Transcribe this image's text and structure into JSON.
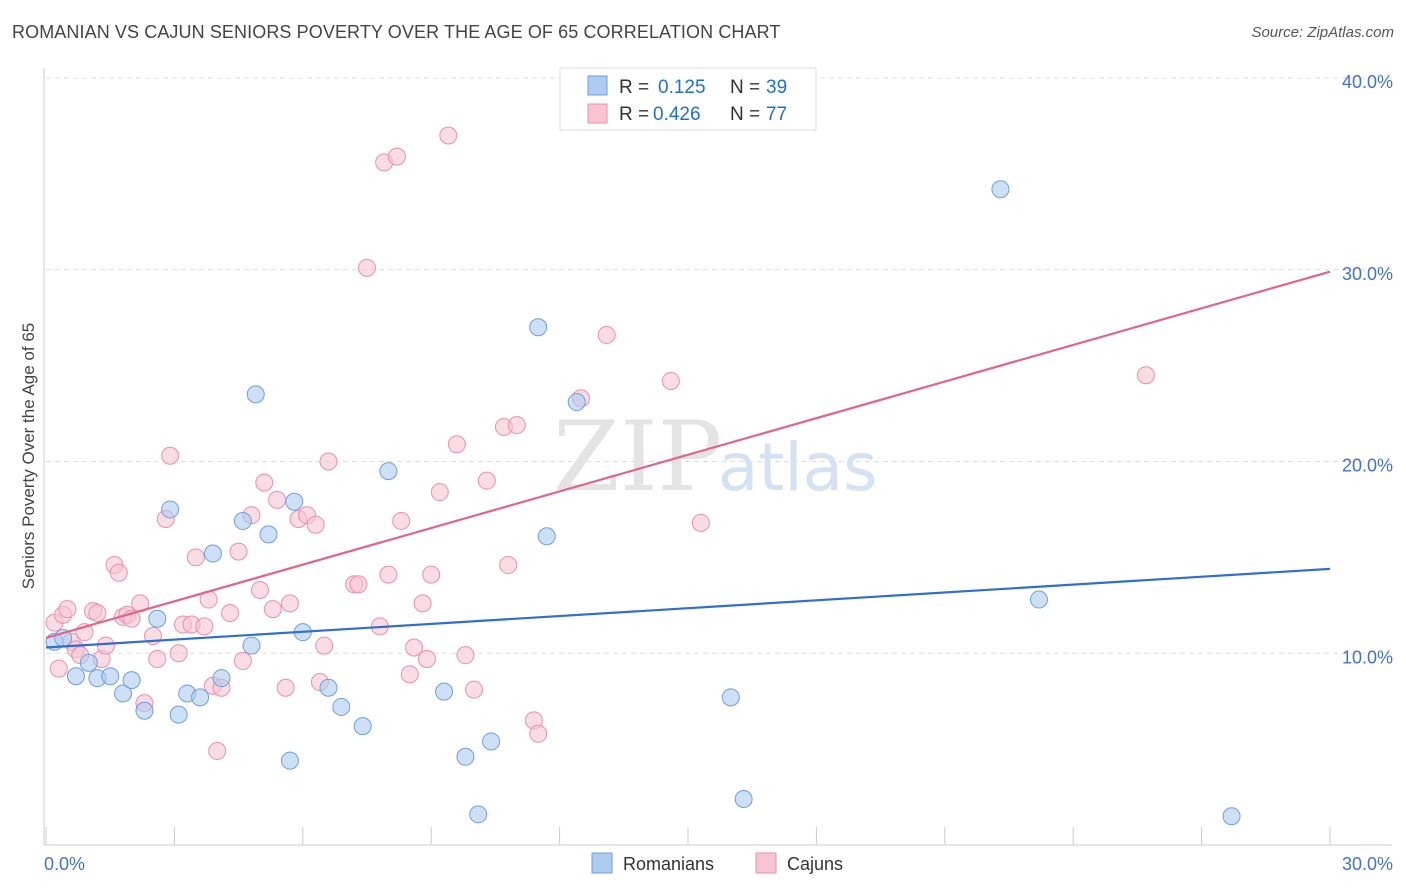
{
  "title": "ROMANIAN VS CAJUN SENIORS POVERTY OVER THE AGE OF 65 CORRELATION CHART",
  "source": "Source: ZipAtlas.com",
  "watermark": {
    "part1": "ZIP",
    "part2": "atlas"
  },
  "colors": {
    "romanians_fill": "#aecbf0",
    "romanians_stroke": "#6f9fdc",
    "romanians_line": "#2f6fcf",
    "cajuns_fill": "#f7c4d3",
    "cajuns_stroke": "#e890ad",
    "cajuns_line": "#e0648e",
    "tick_label": "#4472c4",
    "grid": "#dddddd"
  },
  "legend": {
    "r_label": "R =",
    "n_label": "N =",
    "romanians": {
      "r": "0.125",
      "n": "39"
    },
    "cajuns": {
      "r": "0.426",
      "n": "77"
    }
  },
  "chart_data": {
    "type": "scatter",
    "title": "ROMANIAN VS CAJUN SENIORS POVERTY OVER THE AGE OF 65 CORRELATION CHART",
    "xlabel": "",
    "ylabel": "Seniors Poverty Over the Age of 65",
    "xlim": [
      0,
      30
    ],
    "ylim": [
      0,
      40
    ],
    "x_tick_labels": [
      "0.0%",
      "30.0%"
    ],
    "y_ticks": [
      10,
      20,
      30,
      40
    ],
    "y_tick_labels": [
      "10.0%",
      "20.0%",
      "30.0%",
      "40.0%"
    ],
    "grid": true,
    "legend_position": "top-center",
    "series": [
      {
        "name": "Romanians",
        "r": 0.125,
        "n": 39,
        "trend": {
          "x": [
            0,
            30
          ],
          "y": [
            10.3,
            14.4
          ]
        },
        "points": [
          [
            0.2,
            10.6
          ],
          [
            0.4,
            10.8
          ],
          [
            0.7,
            8.8
          ],
          [
            1.0,
            9.5
          ],
          [
            1.2,
            8.7
          ],
          [
            1.5,
            8.8
          ],
          [
            1.8,
            7.9
          ],
          [
            2.0,
            8.6
          ],
          [
            2.3,
            7.0
          ],
          [
            2.6,
            11.8
          ],
          [
            2.9,
            17.5
          ],
          [
            3.1,
            6.8
          ],
          [
            3.3,
            7.9
          ],
          [
            3.6,
            7.7
          ],
          [
            3.9,
            15.2
          ],
          [
            4.1,
            8.7
          ],
          [
            4.6,
            16.9
          ],
          [
            4.8,
            10.4
          ],
          [
            4.9,
            23.5
          ],
          [
            5.2,
            16.2
          ],
          [
            5.7,
            4.4
          ],
          [
            5.8,
            17.9
          ],
          [
            6.0,
            11.1
          ],
          [
            6.6,
            8.2
          ],
          [
            6.9,
            7.2
          ],
          [
            7.4,
            6.2
          ],
          [
            8.0,
            19.5
          ],
          [
            9.3,
            8.0
          ],
          [
            9.8,
            4.6
          ],
          [
            10.1,
            1.6
          ],
          [
            10.4,
            5.4
          ],
          [
            11.5,
            27.0
          ],
          [
            11.7,
            16.1
          ],
          [
            12.4,
            23.1
          ],
          [
            16.0,
            7.7
          ],
          [
            16.3,
            2.4
          ],
          [
            22.3,
            34.2
          ],
          [
            23.2,
            12.8
          ],
          [
            27.7,
            1.5
          ]
        ]
      },
      {
        "name": "Cajuns",
        "r": 0.426,
        "n": 77,
        "trend": {
          "x": [
            0,
            30
          ],
          "y": [
            10.8,
            29.9
          ]
        },
        "points": [
          [
            0.2,
            11.6
          ],
          [
            0.3,
            9.2
          ],
          [
            0.4,
            12.0
          ],
          [
            0.5,
            12.3
          ],
          [
            0.6,
            10.6
          ],
          [
            0.7,
            10.2
          ],
          [
            0.8,
            9.9
          ],
          [
            0.9,
            11.1
          ],
          [
            1.1,
            12.2
          ],
          [
            1.2,
            12.1
          ],
          [
            1.3,
            9.7
          ],
          [
            1.4,
            10.4
          ],
          [
            1.6,
            14.6
          ],
          [
            1.7,
            14.2
          ],
          [
            1.8,
            11.9
          ],
          [
            1.9,
            12.0
          ],
          [
            2.0,
            11.8
          ],
          [
            2.2,
            12.6
          ],
          [
            2.3,
            7.4
          ],
          [
            2.5,
            10.9
          ],
          [
            2.6,
            9.7
          ],
          [
            2.8,
            17.0
          ],
          [
            2.9,
            20.3
          ],
          [
            3.1,
            10.0
          ],
          [
            3.2,
            11.5
          ],
          [
            3.4,
            11.5
          ],
          [
            3.5,
            15.0
          ],
          [
            3.7,
            11.4
          ],
          [
            3.8,
            12.8
          ],
          [
            3.9,
            8.3
          ],
          [
            4.0,
            4.9
          ],
          [
            4.1,
            8.2
          ],
          [
            4.3,
            12.1
          ],
          [
            4.5,
            15.3
          ],
          [
            4.6,
            9.6
          ],
          [
            4.8,
            17.2
          ],
          [
            5.0,
            13.3
          ],
          [
            5.1,
            18.9
          ],
          [
            5.3,
            12.3
          ],
          [
            5.4,
            18.0
          ],
          [
            5.6,
            8.2
          ],
          [
            5.7,
            12.6
          ],
          [
            5.9,
            17.0
          ],
          [
            6.1,
            17.2
          ],
          [
            6.3,
            16.7
          ],
          [
            6.4,
            8.5
          ],
          [
            6.5,
            10.4
          ],
          [
            6.6,
            20.0
          ],
          [
            7.2,
            13.6
          ],
          [
            7.3,
            13.6
          ],
          [
            7.5,
            30.1
          ],
          [
            7.8,
            11.4
          ],
          [
            7.9,
            35.6
          ],
          [
            8.0,
            14.1
          ],
          [
            8.2,
            35.9
          ],
          [
            8.3,
            16.9
          ],
          [
            8.5,
            8.9
          ],
          [
            8.6,
            10.3
          ],
          [
            8.8,
            12.6
          ],
          [
            8.9,
            9.7
          ],
          [
            9.0,
            14.1
          ],
          [
            9.2,
            18.4
          ],
          [
            9.4,
            37.0
          ],
          [
            9.6,
            20.9
          ],
          [
            9.8,
            9.9
          ],
          [
            10.0,
            8.1
          ],
          [
            10.3,
            19.0
          ],
          [
            10.7,
            21.8
          ],
          [
            10.8,
            14.6
          ],
          [
            11.0,
            21.9
          ],
          [
            11.4,
            6.5
          ],
          [
            11.5,
            5.8
          ],
          [
            12.5,
            23.3
          ],
          [
            13.1,
            26.6
          ],
          [
            14.6,
            24.2
          ],
          [
            15.3,
            16.8
          ],
          [
            25.7,
            24.5
          ]
        ]
      }
    ]
  }
}
